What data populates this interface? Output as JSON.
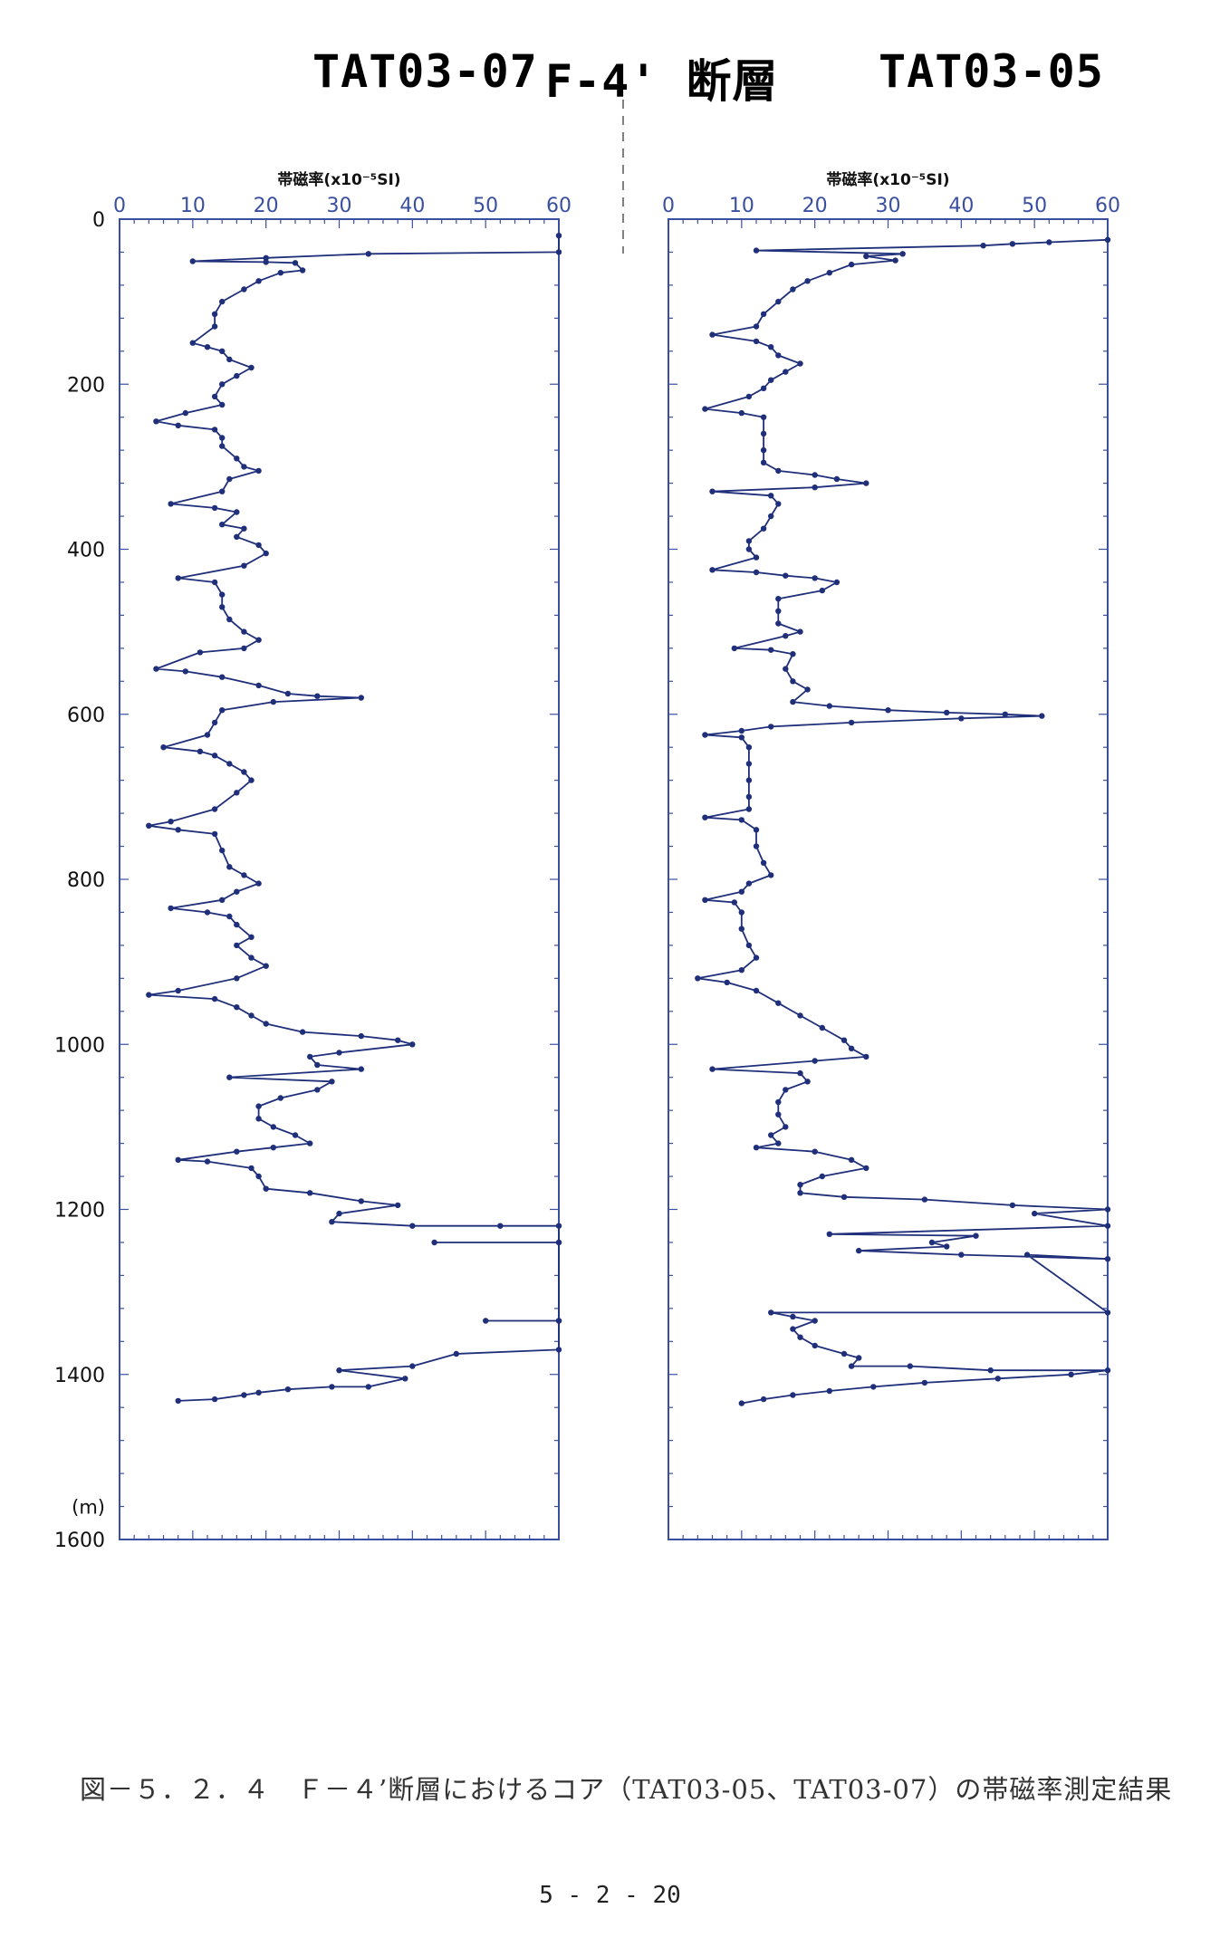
{
  "titles": {
    "left": "TAT03-07",
    "fault": "F-4' 断層",
    "right": "TAT03-05"
  },
  "caption": "図－５．２．４　Ｆ－４’断層におけるコア（TAT03-05、TAT03-07）の帯磁率測定結果",
  "page_number": "5 - 2 - 20",
  "colors": {
    "series": "#1f2f7a",
    "frame": "#3a4fa0",
    "tick_text": "#3a4fa0"
  },
  "chart_data": [
    {
      "type": "line",
      "name": "TAT03-07",
      "xlabel": "帯磁率(x10⁻⁵SI)",
      "ylabel": "",
      "depth_unit": "(m)",
      "xlim": [
        0,
        60
      ],
      "ylim": [
        0,
        1600
      ],
      "y_inverted": true,
      "xticks": [
        "0",
        "10",
        "20",
        "30",
        "40",
        "50",
        "60"
      ],
      "yticks": [
        "0",
        "200",
        "400",
        "600",
        "800",
        "1000",
        "1200",
        "1400",
        "1600"
      ],
      "grid": false,
      "points": [
        [
          60,
          20
        ],
        [
          60,
          40
        ],
        [
          34,
          42
        ],
        [
          20,
          47
        ],
        [
          10,
          51
        ],
        [
          20,
          52
        ],
        [
          24,
          53
        ],
        [
          25,
          62
        ],
        [
          22,
          65
        ],
        [
          19,
          75
        ],
        [
          17,
          85
        ],
        [
          14,
          100
        ],
        [
          13,
          115
        ],
        [
          13,
          130
        ],
        [
          10,
          150
        ],
        [
          12,
          155
        ],
        [
          14,
          160
        ],
        [
          15,
          170
        ],
        [
          18,
          180
        ],
        [
          16,
          190
        ],
        [
          14,
          200
        ],
        [
          13,
          215
        ],
        [
          14,
          225
        ],
        [
          9,
          235
        ],
        [
          5,
          245
        ],
        [
          8,
          250
        ],
        [
          13,
          255
        ],
        [
          14,
          265
        ],
        [
          14,
          275
        ],
        [
          16,
          290
        ],
        [
          17,
          300
        ],
        [
          19,
          305
        ],
        [
          15,
          315
        ],
        [
          14,
          330
        ],
        [
          7,
          345
        ],
        [
          13,
          350
        ],
        [
          16,
          355
        ],
        [
          14,
          370
        ],
        [
          17,
          375
        ],
        [
          16,
          385
        ],
        [
          19,
          395
        ],
        [
          20,
          405
        ],
        [
          17,
          420
        ],
        [
          8,
          435
        ],
        [
          13,
          440
        ],
        [
          14,
          455
        ],
        [
          14,
          470
        ],
        [
          15,
          485
        ],
        [
          17,
          500
        ],
        [
          19,
          510
        ],
        [
          17,
          520
        ],
        [
          11,
          525
        ],
        [
          5,
          545
        ],
        [
          9,
          548
        ],
        [
          14,
          555
        ],
        [
          19,
          565
        ],
        [
          23,
          575
        ],
        [
          27,
          578
        ],
        [
          33,
          580
        ],
        [
          21,
          585
        ],
        [
          14,
          595
        ],
        [
          13,
          610
        ],
        [
          12,
          625
        ],
        [
          6,
          640
        ],
        [
          11,
          645
        ],
        [
          13,
          650
        ],
        [
          15,
          660
        ],
        [
          17,
          670
        ],
        [
          18,
          680
        ],
        [
          16,
          695
        ],
        [
          13,
          715
        ],
        [
          7,
          730
        ],
        [
          4,
          735
        ],
        [
          8,
          740
        ],
        [
          13,
          745
        ],
        [
          14,
          765
        ],
        [
          15,
          785
        ],
        [
          17,
          795
        ],
        [
          19,
          805
        ],
        [
          16,
          815
        ],
        [
          14,
          825
        ],
        [
          7,
          835
        ],
        [
          12,
          840
        ],
        [
          15,
          845
        ],
        [
          16,
          855
        ],
        [
          18,
          870
        ],
        [
          16,
          880
        ],
        [
          18,
          895
        ],
        [
          20,
          905
        ],
        [
          16,
          920
        ],
        [
          8,
          935
        ],
        [
          4,
          940
        ],
        [
          13,
          945
        ],
        [
          16,
          955
        ],
        [
          18,
          965
        ],
        [
          20,
          975
        ],
        [
          25,
          985
        ],
        [
          33,
          990
        ],
        [
          38,
          995
        ],
        [
          40,
          1000
        ],
        [
          30,
          1010
        ],
        [
          26,
          1015
        ],
        [
          27,
          1025
        ],
        [
          33,
          1030
        ],
        [
          15,
          1040
        ],
        [
          29,
          1045
        ],
        [
          27,
          1055
        ],
        [
          22,
          1065
        ],
        [
          19,
          1075
        ],
        [
          19,
          1090
        ],
        [
          21,
          1100
        ],
        [
          24,
          1110
        ],
        [
          26,
          1120
        ],
        [
          21,
          1125
        ],
        [
          16,
          1130
        ],
        [
          8,
          1140
        ],
        [
          12,
          1142
        ],
        [
          18,
          1150
        ],
        [
          19,
          1160
        ],
        [
          20,
          1175
        ],
        [
          26,
          1180
        ],
        [
          33,
          1190
        ],
        [
          38,
          1195
        ],
        [
          30,
          1205
        ],
        [
          29,
          1215
        ],
        [
          40,
          1220
        ],
        [
          52,
          1220
        ],
        [
          60,
          1220
        ],
        [
          60,
          1240
        ],
        [
          43,
          1240
        ],
        [
          60,
          1240
        ],
        [
          60,
          1335
        ],
        [
          50,
          1335
        ],
        [
          60,
          1335
        ],
        [
          60,
          1370
        ],
        [
          46,
          1375
        ],
        [
          40,
          1390
        ],
        [
          30,
          1395
        ],
        [
          39,
          1405
        ],
        [
          34,
          1415
        ],
        [
          29,
          1415
        ],
        [
          23,
          1418
        ],
        [
          19,
          1422
        ],
        [
          17,
          1425
        ],
        [
          13,
          1430
        ],
        [
          8,
          1432
        ]
      ]
    },
    {
      "type": "line",
      "name": "TAT03-05",
      "xlabel": "帯磁率(x10⁻⁵SI)",
      "ylabel": "",
      "xlim": [
        0,
        60
      ],
      "ylim": [
        0,
        1600
      ],
      "y_inverted": true,
      "xticks": [
        "0",
        "10",
        "20",
        "30",
        "40",
        "50",
        "60"
      ],
      "yticks": [],
      "grid": false,
      "points": [
        [
          60,
          25
        ],
        [
          52,
          28
        ],
        [
          47,
          30
        ],
        [
          43,
          32
        ],
        [
          12,
          38
        ],
        [
          32,
          42
        ],
        [
          27,
          45
        ],
        [
          31,
          50
        ],
        [
          25,
          55
        ],
        [
          22,
          65
        ],
        [
          19,
          75
        ],
        [
          17,
          85
        ],
        [
          15,
          100
        ],
        [
          13,
          115
        ],
        [
          12,
          130
        ],
        [
          6,
          140
        ],
        [
          12,
          148
        ],
        [
          14,
          155
        ],
        [
          15,
          165
        ],
        [
          18,
          175
        ],
        [
          16,
          185
        ],
        [
          14,
          195
        ],
        [
          13,
          205
        ],
        [
          11,
          215
        ],
        [
          5,
          230
        ],
        [
          10,
          235
        ],
        [
          13,
          240
        ],
        [
          13,
          260
        ],
        [
          13,
          280
        ],
        [
          13,
          295
        ],
        [
          15,
          305
        ],
        [
          20,
          310
        ],
        [
          23,
          315
        ],
        [
          27,
          320
        ],
        [
          20,
          325
        ],
        [
          6,
          330
        ],
        [
          14,
          335
        ],
        [
          15,
          345
        ],
        [
          14,
          360
        ],
        [
          13,
          375
        ],
        [
          11,
          390
        ],
        [
          11,
          400
        ],
        [
          12,
          410
        ],
        [
          6,
          425
        ],
        [
          12,
          428
        ],
        [
          16,
          432
        ],
        [
          20,
          435
        ],
        [
          23,
          440
        ],
        [
          21,
          450
        ],
        [
          15,
          460
        ],
        [
          15,
          475
        ],
        [
          15,
          490
        ],
        [
          18,
          500
        ],
        [
          16,
          505
        ],
        [
          9,
          520
        ],
        [
          14,
          522
        ],
        [
          17,
          527
        ],
        [
          16,
          545
        ],
        [
          17,
          560
        ],
        [
          19,
          570
        ],
        [
          17,
          585
        ],
        [
          22,
          590
        ],
        [
          30,
          595
        ],
        [
          38,
          598
        ],
        [
          46,
          600
        ],
        [
          51,
          602
        ],
        [
          40,
          605
        ],
        [
          25,
          610
        ],
        [
          14,
          615
        ],
        [
          10,
          620
        ],
        [
          5,
          625
        ],
        [
          10,
          628
        ],
        [
          11,
          640
        ],
        [
          11,
          660
        ],
        [
          11,
          680
        ],
        [
          11,
          700
        ],
        [
          11,
          715
        ],
        [
          5,
          725
        ],
        [
          10,
          728
        ],
        [
          12,
          740
        ],
        [
          12,
          760
        ],
        [
          13,
          780
        ],
        [
          14,
          795
        ],
        [
          11,
          805
        ],
        [
          10,
          815
        ],
        [
          5,
          825
        ],
        [
          9,
          828
        ],
        [
          10,
          840
        ],
        [
          10,
          860
        ],
        [
          11,
          880
        ],
        [
          12,
          895
        ],
        [
          10,
          910
        ],
        [
          4,
          920
        ],
        [
          8,
          925
        ],
        [
          12,
          935
        ],
        [
          15,
          950
        ],
        [
          18,
          965
        ],
        [
          21,
          980
        ],
        [
          24,
          995
        ],
        [
          25,
          1005
        ],
        [
          27,
          1015
        ],
        [
          20,
          1020
        ],
        [
          6,
          1030
        ],
        [
          18,
          1035
        ],
        [
          19,
          1045
        ],
        [
          16,
          1055
        ],
        [
          15,
          1070
        ],
        [
          15,
          1085
        ],
        [
          16,
          1100
        ],
        [
          14,
          1110
        ],
        [
          15,
          1120
        ],
        [
          12,
          1125
        ],
        [
          20,
          1130
        ],
        [
          25,
          1140
        ],
        [
          27,
          1150
        ],
        [
          21,
          1160
        ],
        [
          18,
          1170
        ],
        [
          18,
          1180
        ],
        [
          24,
          1185
        ],
        [
          35,
          1188
        ],
        [
          47,
          1195
        ],
        [
          60,
          1200
        ],
        [
          50,
          1205
        ],
        [
          60,
          1220
        ],
        [
          22,
          1230
        ],
        [
          42,
          1232
        ],
        [
          36,
          1240
        ],
        [
          38,
          1245
        ],
        [
          26,
          1250
        ],
        [
          40,
          1255
        ],
        [
          60,
          1260
        ],
        [
          49,
          1255
        ],
        [
          60,
          1325
        ],
        [
          14,
          1325
        ],
        [
          17,
          1330
        ],
        [
          20,
          1335
        ],
        [
          17,
          1345
        ],
        [
          18,
          1355
        ],
        [
          20,
          1365
        ],
        [
          24,
          1375
        ],
        [
          26,
          1380
        ],
        [
          25,
          1390
        ],
        [
          33,
          1390
        ],
        [
          44,
          1395
        ],
        [
          60,
          1395
        ],
        [
          55,
          1400
        ],
        [
          45,
          1405
        ],
        [
          35,
          1410
        ],
        [
          28,
          1415
        ],
        [
          22,
          1420
        ],
        [
          17,
          1425
        ],
        [
          13,
          1430
        ],
        [
          10,
          1435
        ]
      ]
    }
  ]
}
